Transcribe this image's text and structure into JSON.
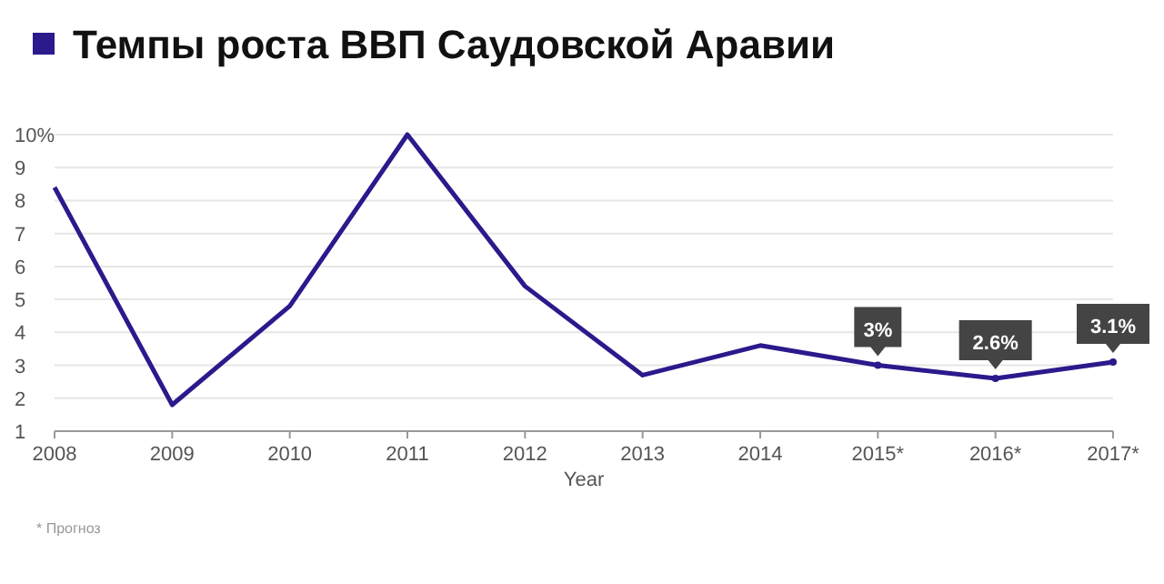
{
  "chart_data": {
    "type": "line",
    "title": "Темпы роста ВВП Саудовской Аравии",
    "xlabel": "Year",
    "categories": [
      "2008",
      "2009",
      "2010",
      "2011",
      "2012",
      "2013",
      "2014",
      "2015*",
      "2016*",
      "2017*"
    ],
    "series": [
      {
        "color": "#2a1a8c",
        "values": [
          8.4,
          1.8,
          4.8,
          10.0,
          5.4,
          2.7,
          3.6,
          3.0,
          2.6,
          3.1
        ],
        "value_labels": [
          null,
          null,
          null,
          null,
          null,
          null,
          null,
          "3%",
          "2.6%",
          "3.1%"
        ]
      }
    ],
    "ylim": [
      1,
      10
    ],
    "yticks": [
      1,
      2,
      3,
      4,
      5,
      6,
      7,
      8,
      9,
      {
        "value": 10,
        "label": "10%"
      }
    ],
    "grid": "y",
    "line_style": "solid",
    "marker": "none",
    "annotations": [
      "* Прогноз"
    ]
  }
}
